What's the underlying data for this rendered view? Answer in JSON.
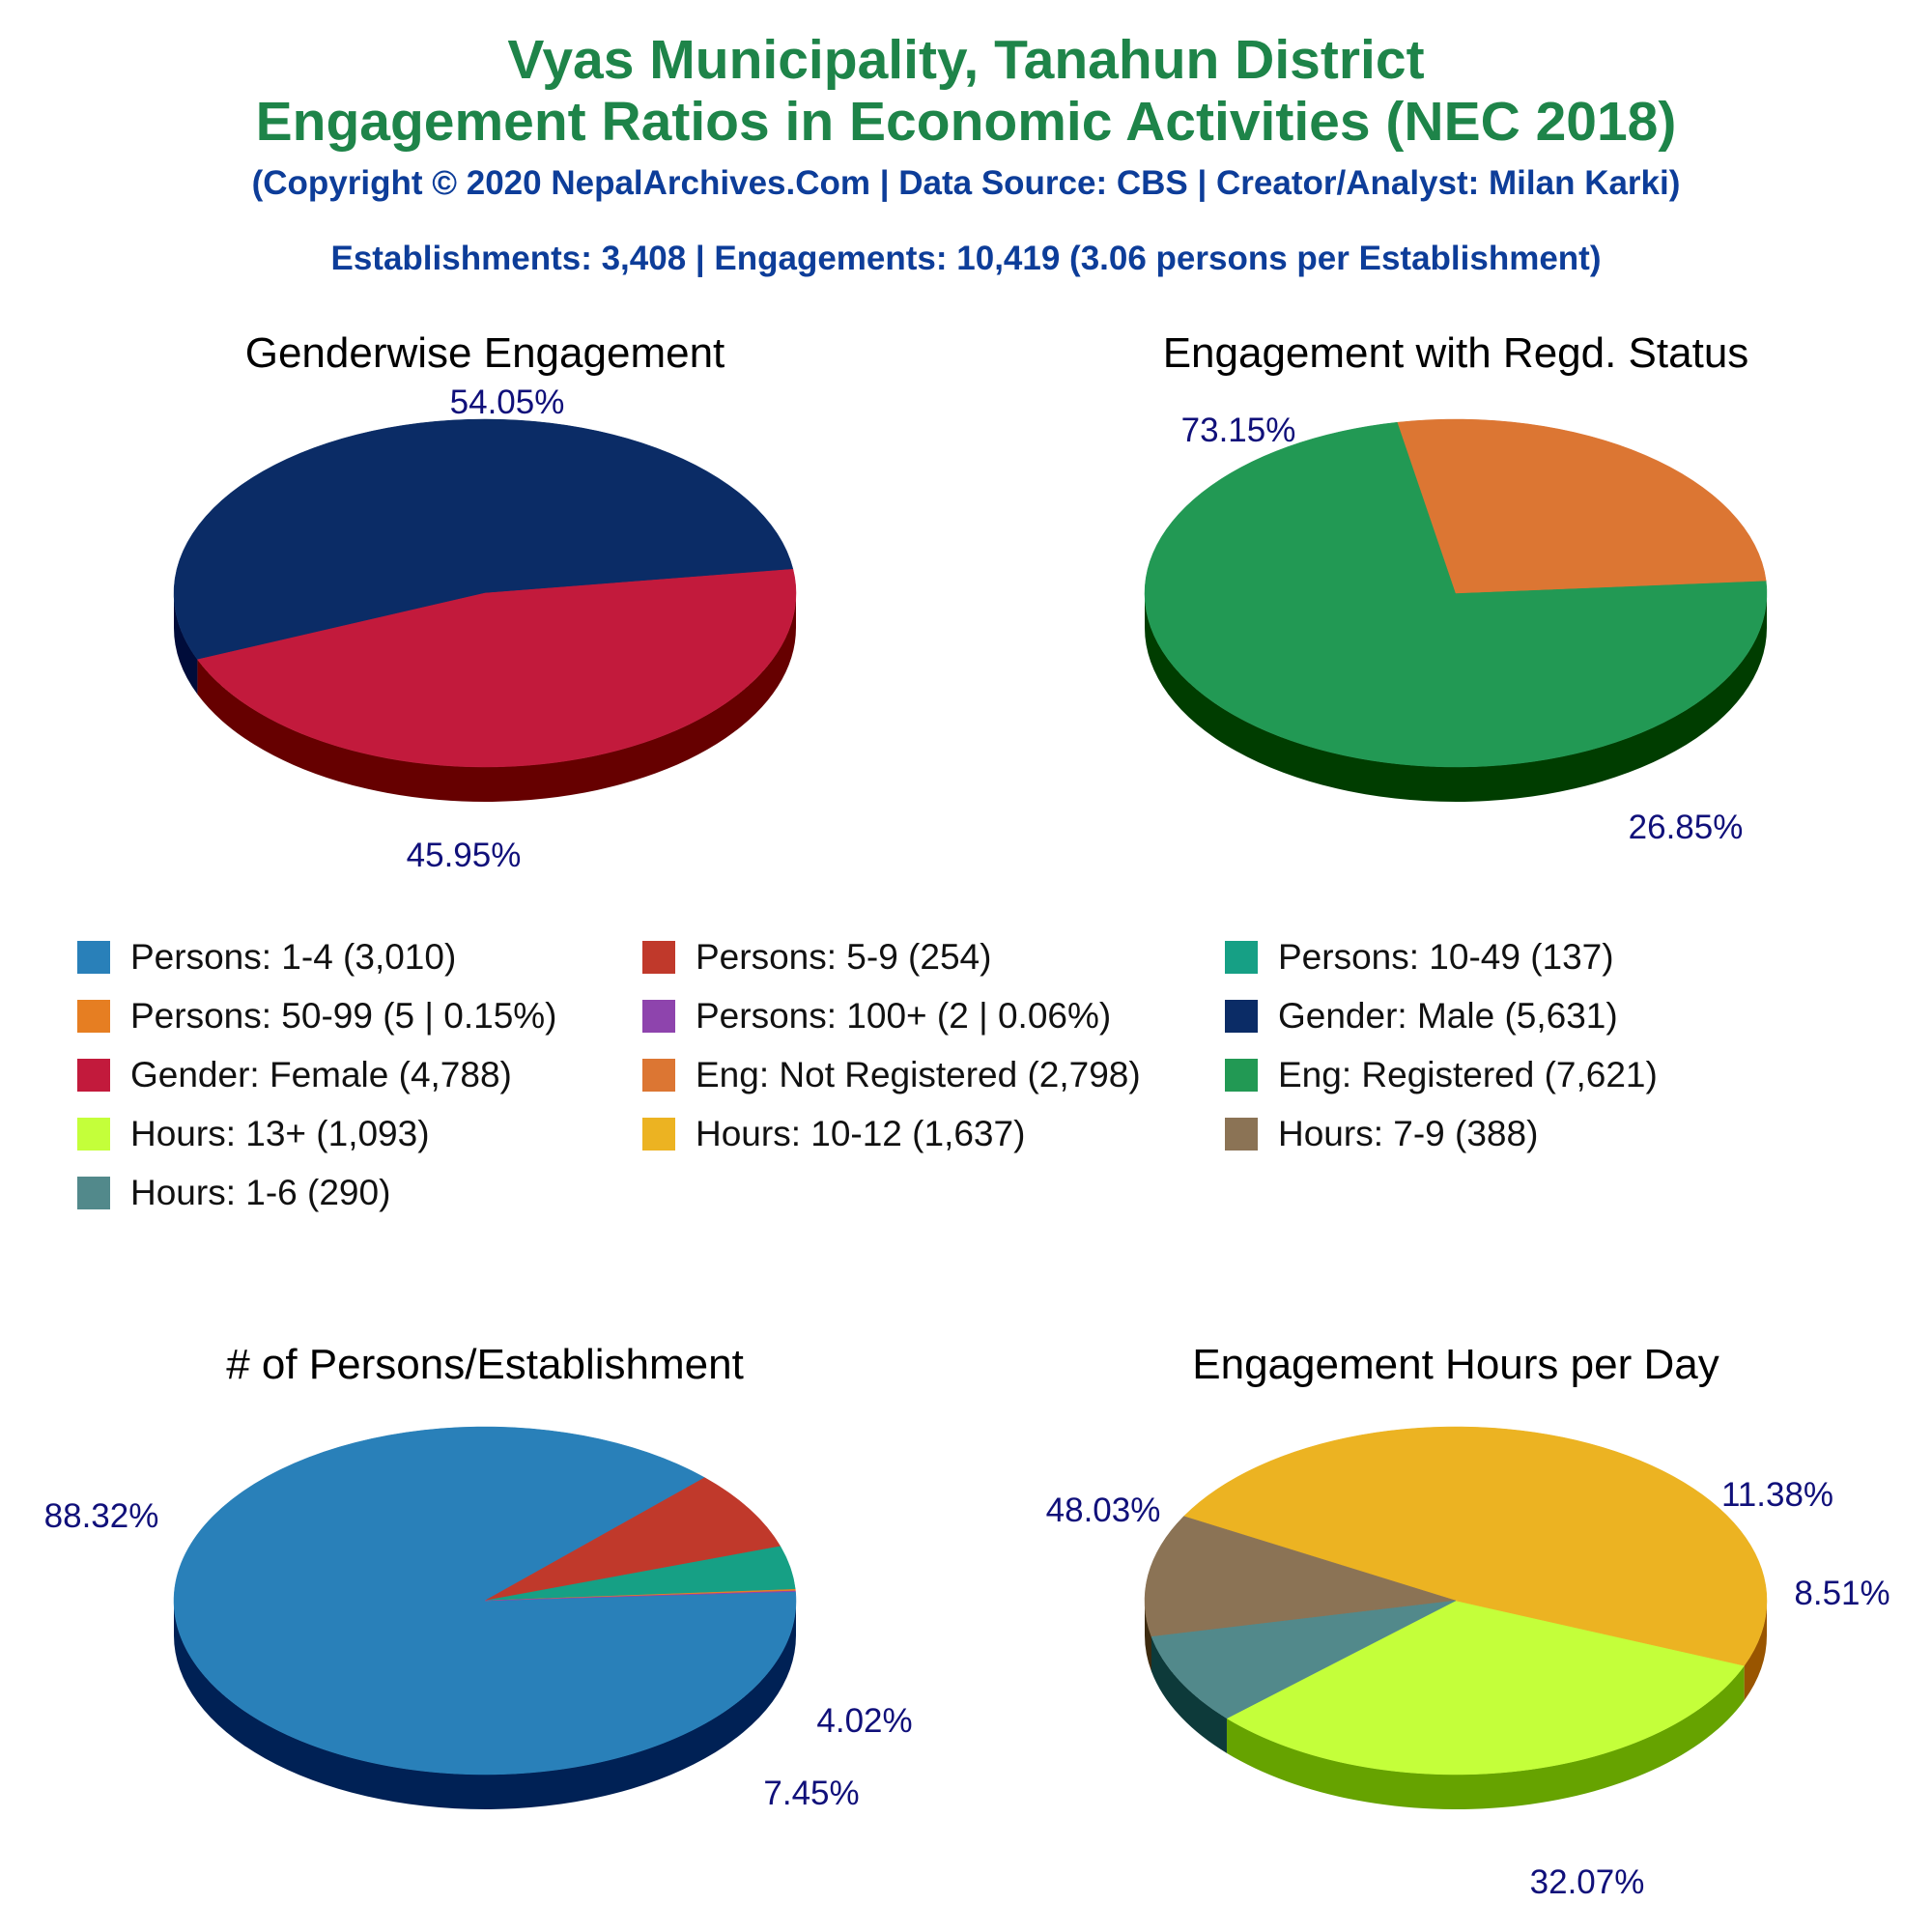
{
  "header": {
    "title_line1": "Vyas Municipality, Tanahun District",
    "title_line2": "Engagement Ratios in Economic Activities (NEC 2018)",
    "copyright": "(Copyright © 2020 NepalArchives.Com | Data Source: CBS | Creator/Analyst: Milan Karki)",
    "summary": "Establishments: 3,408 | Engagements: 10,419 (3.06 persons per Establishment)"
  },
  "legend": [
    {
      "label": "Persons: 1-4 (3,010)",
      "color": "#2980b9"
    },
    {
      "label": "Persons: 5-9 (254)",
      "color": "#c0392b"
    },
    {
      "label": "Persons: 10-49 (137)",
      "color": "#16a085"
    },
    {
      "label": "Persons: 50-99 (5 | 0.15%)",
      "color": "#e67e22"
    },
    {
      "label": "Persons: 100+ (2 | 0.06%)",
      "color": "#8e44ad"
    },
    {
      "label": "Gender: Male (5,631)",
      "color": "#0b2c66"
    },
    {
      "label": "Gender: Female (4,788)",
      "color": "#c21a3c"
    },
    {
      "label": "Eng: Not Registered (2,798)",
      "color": "#dc7633"
    },
    {
      "label": "Eng: Registered (7,621)",
      "color": "#229954"
    },
    {
      "label": "Hours: 13+ (1,093)",
      "color": "#c4ff3a"
    },
    {
      "label": "Hours: 10-12 (1,637)",
      "color": "#ecb322"
    },
    {
      "label": "Hours: 7-9 (388)",
      "color": "#8b7355"
    },
    {
      "label": "Hours: 1-6 (290)",
      "color": "#52898b"
    }
  ],
  "chart_data": [
    {
      "type": "pie",
      "title": "Genderwise Engagement",
      "slices": [
        {
          "label": "Gender: Male",
          "value": 5631,
          "percent_label": "54.05%",
          "color": "#0b2c66",
          "side_color": "#000c3a"
        },
        {
          "label": "Gender: Female",
          "value": 4788,
          "percent_label": "45.95%",
          "color": "#c21a3c",
          "side_color": "#660000"
        }
      ]
    },
    {
      "type": "pie",
      "title": "Engagement with Regd. Status",
      "slices": [
        {
          "label": "Eng: Registered",
          "value": 7621,
          "percent_label": "73.15%",
          "color": "#229954",
          "side_color": "#003d00"
        },
        {
          "label": "Eng: Not Registered",
          "value": 2798,
          "percent_label": "26.85%",
          "color": "#dc7633",
          "side_color": "#7a1a00"
        }
      ]
    },
    {
      "type": "pie",
      "title": "# of Persons/Establishment",
      "slices": [
        {
          "label": "Persons: 1-4",
          "value": 3010,
          "percent_label": "88.32%",
          "color": "#2980b9",
          "side_color": "#002155"
        },
        {
          "label": "Persons: 5-9",
          "value": 254,
          "percent_label": "7.45%",
          "color": "#c0392b",
          "side_color": "#5c0000"
        },
        {
          "label": "Persons: 10-49",
          "value": 137,
          "percent_label": "4.02%",
          "color": "#16a085",
          "side_color": "#004a33"
        },
        {
          "label": "Persons: 50-99",
          "value": 5,
          "percent_label": "",
          "color": "#e67e22",
          "side_color": "#7a2a00"
        },
        {
          "label": "Persons: 100+",
          "value": 2,
          "percent_label": "",
          "color": "#8e44ad",
          "side_color": "#3a0055"
        }
      ]
    },
    {
      "type": "pie",
      "title": "Engagement Hours per Day",
      "slices": [
        {
          "label": "Hours: 13+",
          "value": 1093,
          "percent_label": "32.07%",
          "color": "#c4ff3a",
          "side_color": "#66a300"
        },
        {
          "label": "Hours: 10-12",
          "value": 1637,
          "percent_label": "48.03%",
          "color": "#ecb322",
          "side_color": "#995500"
        },
        {
          "label": "Hours: 7-9",
          "value": 388,
          "percent_label": "11.38%",
          "color": "#8b7355",
          "side_color": "#3d2b10"
        },
        {
          "label": "Hours: 1-6",
          "value": 290,
          "percent_label": "8.51%",
          "color": "#52898b",
          "side_color": "#0d3a3a"
        }
      ]
    }
  ]
}
